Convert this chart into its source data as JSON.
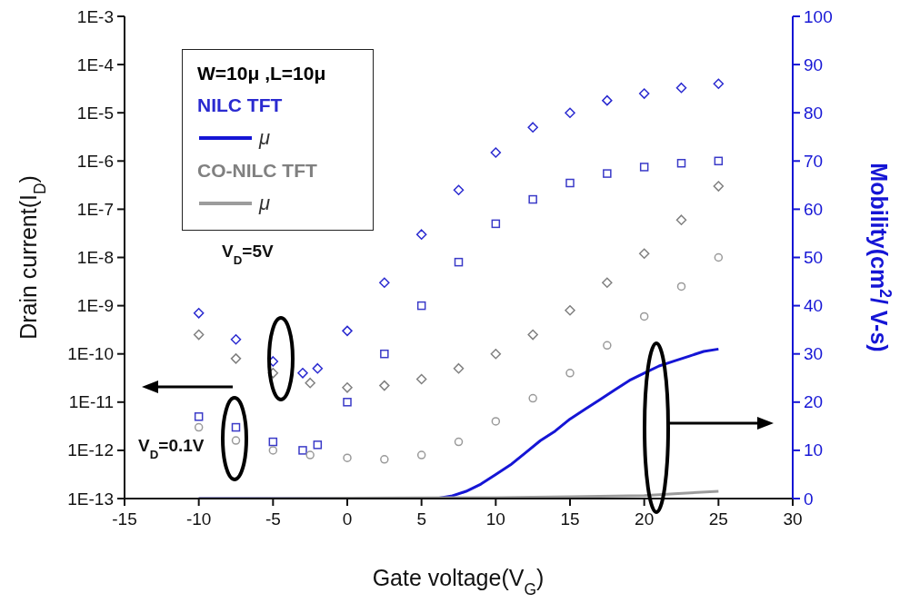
{
  "chart_data": {
    "type": "scatter",
    "xlabel": "Gate voltage(V$_{G}$)",
    "ylabel": "Drain current(I$_{D}$)",
    "y2label": "Mobility(cm$^{2}$/ V-s)",
    "legend_title": "W=10μ ,L=10μ",
    "legend": "top left",
    "log": "y",
    "grid": false,
    "xlim": [
      -15,
      30
    ],
    "xticks": [
      -15,
      -10,
      -5,
      0,
      5,
      10,
      15,
      20,
      25,
      30
    ],
    "ylim": [
      1e-13,
      0.001
    ],
    "yticks": [
      {
        "value": 1e-13,
        "label": "1E-13"
      },
      {
        "value": 1e-12,
        "label": "1E-12"
      },
      {
        "value": 1e-11,
        "label": "1E-11"
      },
      {
        "value": 1e-10,
        "label": "1E-10"
      },
      {
        "value": 1e-09,
        "label": "1E-9"
      },
      {
        "value": 1e-08,
        "label": "1E-8"
      },
      {
        "value": 1e-07,
        "label": "1E-7"
      },
      {
        "value": 1e-06,
        "label": "1E-6"
      },
      {
        "value": 1e-05,
        "label": "1E-5"
      },
      {
        "value": 0.0001,
        "label": "1E-4"
      },
      {
        "value": 0.001,
        "label": "1E-3"
      }
    ],
    "y2lim": [
      0,
      100
    ],
    "y2ticks": [
      0,
      10,
      20,
      30,
      40,
      50,
      60,
      70,
      80,
      90,
      100
    ],
    "annotations": [
      "V$_{D}$=5V",
      "V$_{D}$=0.1V"
    ],
    "series": [
      {
        "name": "NILC TFT",
        "marker": "diamond",
        "color": "#2a2ad0",
        "x": [
          -10,
          -7.5,
          -5,
          -3,
          -2,
          0,
          2.5,
          5,
          7.5,
          10,
          12.5,
          15,
          17.5,
          20,
          22.5,
          25
        ],
        "values": [
          7e-10,
          2e-10,
          7e-11,
          4e-11,
          5e-11,
          3e-10,
          3e-09,
          3e-08,
          2.5e-07,
          1.5e-06,
          5e-06,
          1e-05,
          1.8e-05,
          2.5e-05,
          3.3e-05,
          4e-05
        ]
      },
      {
        "name": "μ",
        "type": "line",
        "axis": "y2",
        "marker": "none",
        "line_style": "solid",
        "color": "#1515d5",
        "x": [
          -10,
          6,
          7,
          8,
          9,
          10,
          11,
          12,
          13,
          14,
          15,
          16,
          17,
          18,
          19,
          20,
          21,
          22,
          23,
          24,
          25
        ],
        "values": [
          0,
          0,
          0.5,
          1.5,
          3,
          5,
          7,
          9.5,
          12,
          14,
          16.5,
          18.5,
          20.5,
          22.5,
          24.5,
          26,
          27.5,
          28.5,
          29.5,
          30.5,
          31
        ]
      },
      {
        "name": "CO-NILC TFT",
        "marker": "diamond",
        "color": "#808080",
        "x": [
          -10,
          -7.5,
          -5,
          -2.5,
          0,
          2.5,
          5,
          7.5,
          10,
          12.5,
          15,
          17.5,
          20,
          22.5,
          25
        ],
        "values": [
          2.5e-10,
          8e-11,
          4e-11,
          2.5e-11,
          2e-11,
          2.2e-11,
          3e-11,
          5e-11,
          1e-10,
          2.5e-10,
          8e-10,
          3e-09,
          1.2e-08,
          6e-08,
          3e-07
        ]
      },
      {
        "name": "μ",
        "type": "line",
        "axis": "y2",
        "marker": "none",
        "line_style": "solid",
        "color": "#9c9c9c",
        "x": [
          -10,
          10,
          15,
          20,
          22,
          25
        ],
        "values": [
          0,
          0.2,
          0.4,
          0.6,
          1,
          1.5
        ]
      },
      {
        "marker": "square",
        "color": "#3a3ac8",
        "x": [
          -10,
          -7.5,
          -5,
          -3,
          -2,
          0,
          2.5,
          5,
          7.5,
          10,
          12.5,
          15,
          17.5,
          20,
          22.5,
          25
        ],
        "values": [
          5e-12,
          3e-12,
          1.5e-12,
          1e-12,
          1.3e-12,
          1e-11,
          1e-10,
          1e-09,
          8e-09,
          5e-08,
          1.6e-07,
          3.5e-07,
          5.5e-07,
          7.5e-07,
          9e-07,
          1e-06
        ]
      },
      {
        "marker": "circle",
        "color": "#9a9a9a",
        "x": [
          -10,
          -7.5,
          -5,
          -2.5,
          0,
          2.5,
          5,
          7.5,
          10,
          12.5,
          15,
          17.5,
          20,
          22.5,
          25
        ],
        "values": [
          3e-12,
          1.6e-12,
          1e-12,
          8e-13,
          7e-13,
          6.5e-13,
          8e-13,
          1.5e-12,
          4e-12,
          1.2e-11,
          4e-11,
          1.5e-10,
          6e-10,
          2.5e-09,
          1e-08
        ]
      }
    ]
  }
}
